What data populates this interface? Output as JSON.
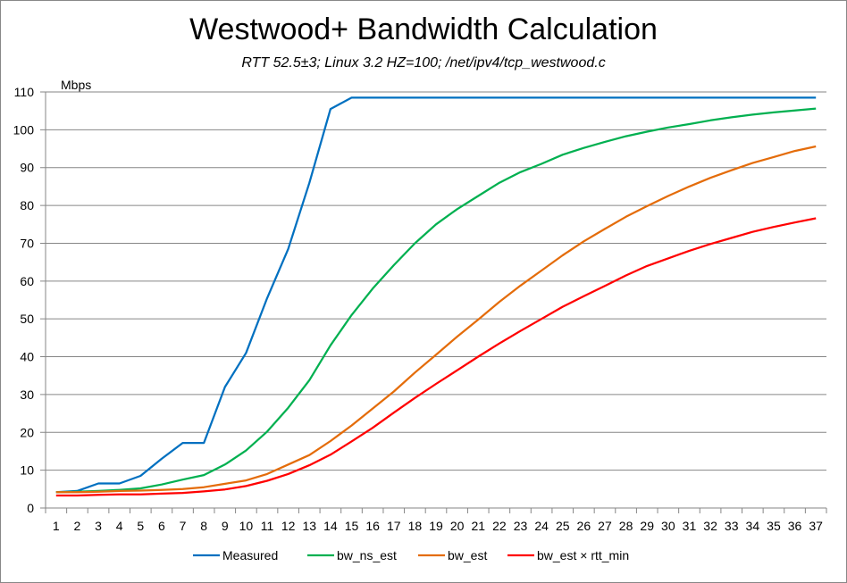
{
  "chart_data": {
    "type": "line",
    "title": "Westwood+ Bandwidth Calculation",
    "subtitle": "RTT 52.5±3; Linux 3.2 HZ=100; /net/ipv4/tcp_westwood.c",
    "ylabel": "Mbps",
    "xlabel": "",
    "ylim": [
      0,
      110
    ],
    "yticks": [
      0,
      10,
      20,
      30,
      40,
      50,
      60,
      70,
      80,
      90,
      100,
      110
    ],
    "x": [
      1,
      2,
      3,
      4,
      5,
      6,
      7,
      8,
      9,
      10,
      11,
      12,
      13,
      14,
      15,
      16,
      17,
      18,
      19,
      20,
      21,
      22,
      23,
      24,
      25,
      26,
      27,
      28,
      29,
      30,
      31,
      32,
      33,
      34,
      35,
      36,
      37
    ],
    "grid": true,
    "legend": "bottom",
    "series": [
      {
        "name": "Measured",
        "color": "#0070C0",
        "values": [
          4.2,
          4.5,
          6.5,
          6.5,
          8.5,
          13,
          17.2,
          17.2,
          32,
          41,
          55.5,
          68.5,
          86,
          105.5,
          108.5,
          108.5,
          108.5,
          108.5,
          108.5,
          108.5,
          108.5,
          108.5,
          108.5,
          108.5,
          108.5,
          108.5,
          108.5,
          108.5,
          108.5,
          108.5,
          108.5,
          108.5,
          108.5,
          108.5,
          108.5,
          108.5,
          108.5
        ]
      },
      {
        "name": "bw_ns_est",
        "color": "#00B050",
        "values": [
          4.2,
          4.3,
          4.5,
          4.8,
          5.2,
          6.2,
          7.5,
          8.7,
          11.5,
          15.2,
          20.2,
          26.5,
          33.8,
          43,
          51,
          58,
          64.2,
          70,
          75,
          79,
          82.5,
          86,
          88.8,
          91,
          93.4,
          95.2,
          96.8,
          98.3,
          99.5,
          100.6,
          101.5,
          102.5,
          103.3,
          104,
          104.6,
          105.1,
          105.6
        ]
      },
      {
        "name": "bw_est",
        "color": "#E46C0A",
        "values": [
          4.2,
          4.2,
          4.3,
          4.5,
          4.6,
          4.8,
          5,
          5.5,
          6.4,
          7.3,
          9,
          11.5,
          14,
          17.7,
          21.8,
          26.3,
          30.8,
          35.8,
          40.5,
          45.3,
          49.8,
          54.5,
          58.8,
          62.8,
          66.8,
          70.5,
          73.8,
          77,
          79.8,
          82.5,
          85,
          87.3,
          89.3,
          91.2,
          92.8,
          94.4,
          95.6
        ]
      },
      {
        "name": "bw_est × rtt_min",
        "color": "#FF0000",
        "values": [
          3.3,
          3.3,
          3.5,
          3.6,
          3.6,
          3.8,
          4,
          4.4,
          4.9,
          5.8,
          7.2,
          9,
          11.3,
          14.1,
          17.6,
          21.2,
          25.2,
          29.1,
          32.8,
          36.4,
          40,
          43.5,
          46.8,
          50,
          53.2,
          56,
          58.7,
          61.5,
          64,
          66,
          68,
          69.8,
          71.4,
          73,
          74.3,
          75.5,
          76.6
        ]
      }
    ]
  }
}
